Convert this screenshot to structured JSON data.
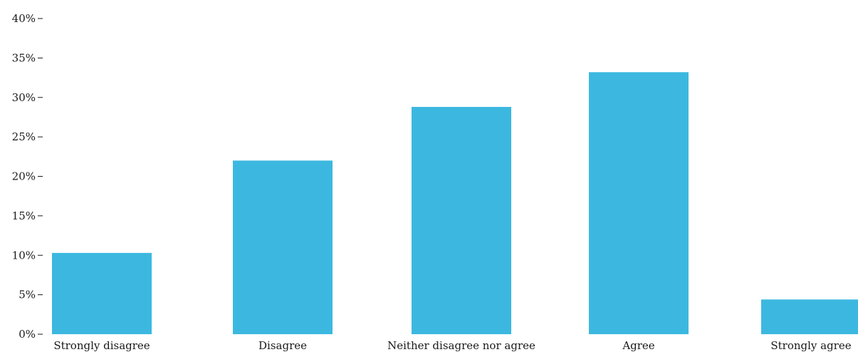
{
  "chart_data": {
    "type": "bar",
    "title": "",
    "xlabel": "",
    "ylabel": "",
    "categories": [
      "Strongly disagree",
      "Disagree",
      "Neither disagree nor agree",
      "Agree",
      "Strongly agree"
    ],
    "values": [
      10.3,
      22.0,
      28.8,
      33.2,
      4.4
    ],
    "unit": "%",
    "ylim": [
      0,
      40
    ],
    "yticks": [
      0,
      5,
      10,
      15,
      20,
      25,
      30,
      35,
      40
    ],
    "ytick_labels": [
      "0%",
      "5%",
      "10%",
      "15%",
      "20%",
      "25%",
      "30%",
      "35%",
      "40%"
    ],
    "grid": false,
    "legend": "none",
    "bar_color": "#3cb8e0",
    "text_color": "#1a1a1a"
  }
}
